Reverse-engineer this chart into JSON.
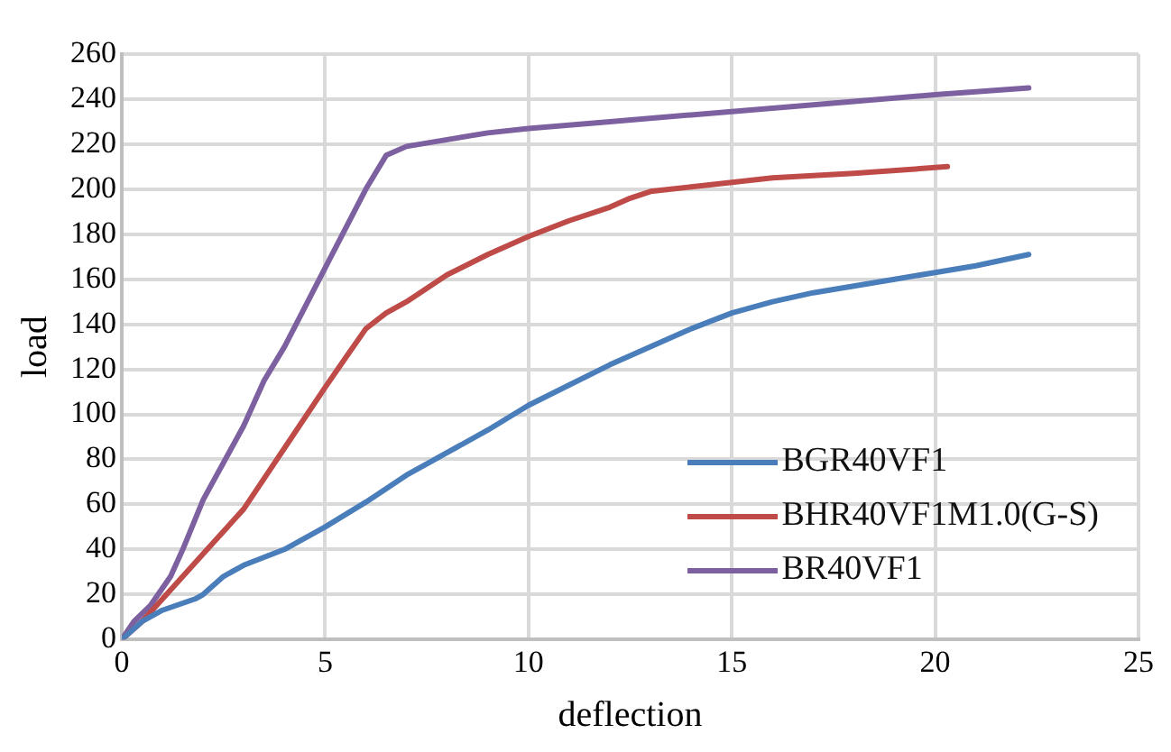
{
  "chart_data": {
    "type": "line",
    "xlabel": "deflection",
    "ylabel": "load",
    "xlim": [
      0,
      25
    ],
    "xticks": [
      0,
      5,
      10,
      15,
      20,
      25
    ],
    "ylim": [
      0,
      260
    ],
    "yticks": [
      0,
      20,
      40,
      60,
      80,
      100,
      120,
      140,
      160,
      180,
      200,
      220,
      240,
      260
    ],
    "grid": true,
    "legend": "bottom right",
    "marker": "none",
    "line_style": "solid",
    "series": [
      {
        "name": "BGR40VF1",
        "color": "#4a7ebb",
        "x": [
          0,
          0.5,
          1,
          1.8,
          2,
          2.5,
          3,
          4,
          5,
          6,
          7,
          8,
          9,
          10,
          11,
          12,
          13,
          14,
          15,
          16,
          17,
          18,
          19,
          20,
          21,
          22.3
        ],
        "values": [
          0,
          8,
          13,
          18,
          20,
          28,
          33,
          40,
          50,
          61,
          73,
          83,
          93,
          104,
          113,
          122,
          130,
          138,
          145,
          150,
          154,
          157,
          160,
          163,
          166,
          171
        ]
      },
      {
        "name": "BHR40VF1M1.0(G-S)",
        "color": "#be4b48",
        "x": [
          0,
          0.5,
          1,
          1.5,
          2,
          3,
          4,
          5,
          5.5,
          6,
          6.5,
          7,
          8,
          9,
          10,
          11,
          12,
          12.5,
          13,
          14,
          15,
          16,
          18,
          20.3
        ],
        "values": [
          0,
          8,
          18,
          28,
          38,
          58,
          85,
          112,
          125,
          138,
          145,
          150,
          162,
          171,
          179,
          186,
          192,
          196,
          199,
          201,
          203,
          205,
          207,
          210
        ]
      },
      {
        "name": "BR40VF1",
        "color": "#7d60a0",
        "x": [
          0,
          0.3,
          0.7,
          1.2,
          1.5,
          2,
          3,
          3.5,
          4,
          5,
          6,
          6.5,
          7,
          8,
          9,
          10,
          12,
          14,
          16,
          18,
          20,
          22.3
        ],
        "values": [
          0,
          8,
          15,
          28,
          40,
          62,
          95,
          115,
          130,
          165,
          200,
          215,
          219,
          222,
          225,
          227,
          230,
          233,
          236,
          239,
          242,
          245
        ]
      }
    ]
  }
}
